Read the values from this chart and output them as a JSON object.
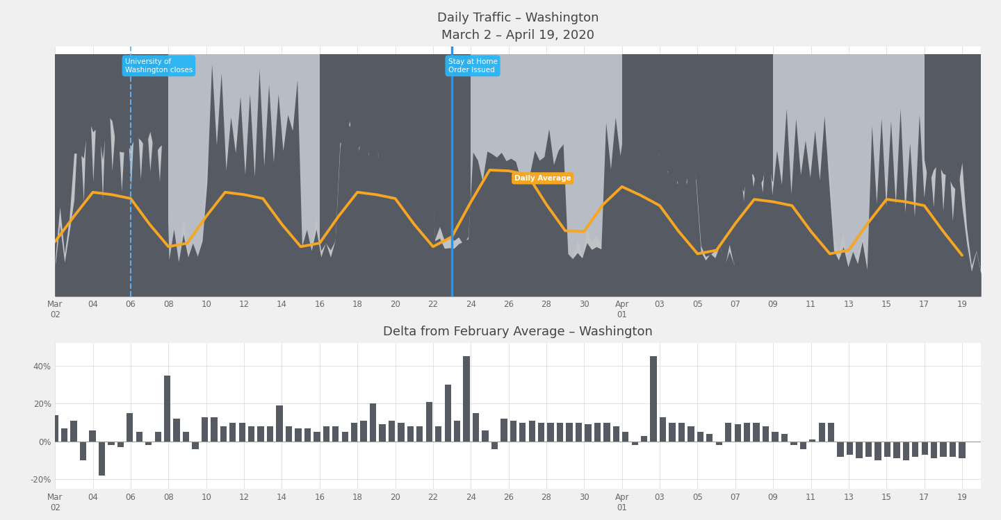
{
  "title1": "Daily Traffic – Washington",
  "subtitle1": "March 2 – April 19, 2020",
  "title2": "Delta from February Average – Washington",
  "bg_color": "#f0f0f0",
  "chart_bg": "#ffffff",
  "dark_fill_color": "#555a63",
  "light_fill_color": "#c0c2c6",
  "orange_color": "#f5a623",
  "blue_line_color": "#2196f3",
  "dashed_line_color": "#64b5f6",
  "annotation_bg": "#29b6f6",
  "annotation_text_color": "#ffffff",
  "grid_color": "#dddddd",
  "tick_labels_top": [
    "Mar\n02",
    "04",
    "06",
    "08",
    "10",
    "12",
    "14",
    "16",
    "18",
    "20",
    "22",
    "24",
    "26",
    "28",
    "30",
    "Apr\n01",
    "03",
    "05",
    "07",
    "09",
    "11",
    "13",
    "15",
    "17",
    "19"
  ],
  "tick_labels_bot": [
    "Mar\n02",
    "04",
    "06",
    "08",
    "10",
    "12",
    "14",
    "16",
    "18",
    "20",
    "22",
    "24",
    "26",
    "28",
    "30",
    "Apr\n01",
    "03",
    "05",
    "07",
    "09",
    "11",
    "13",
    "15",
    "17",
    "19"
  ],
  "tick_positions": [
    0,
    2,
    4,
    6,
    8,
    10,
    12,
    14,
    16,
    18,
    20,
    22,
    24,
    26,
    28,
    30,
    32,
    34,
    36,
    38,
    40,
    42,
    44,
    46,
    48
  ],
  "uw_close_day": 4,
  "stay_home_day": 21,
  "delta_values": [
    14,
    7,
    11,
    -10,
    6,
    -18,
    -2,
    -3,
    15,
    5,
    -2,
    5,
    35,
    12,
    5,
    -4,
    13,
    13,
    8,
    10,
    10,
    8,
    8,
    8,
    19,
    8,
    7,
    7,
    5,
    8,
    8,
    5,
    10,
    11,
    20,
    9,
    11,
    10,
    8,
    8,
    21,
    8,
    30,
    11,
    45,
    15,
    6,
    -4,
    12,
    11,
    10,
    11,
    10,
    10,
    10,
    10,
    10,
    9,
    10,
    10,
    8,
    5,
    -2,
    3,
    45,
    13,
    10,
    10,
    8,
    5,
    4,
    -2,
    10,
    9,
    10,
    10,
    8,
    5,
    4,
    -2,
    -4,
    1,
    10,
    10,
    -8,
    -7,
    -9,
    -8,
    -10,
    -8,
    -9,
    -10,
    -8,
    -7,
    -9,
    -8,
    -8,
    -9
  ]
}
